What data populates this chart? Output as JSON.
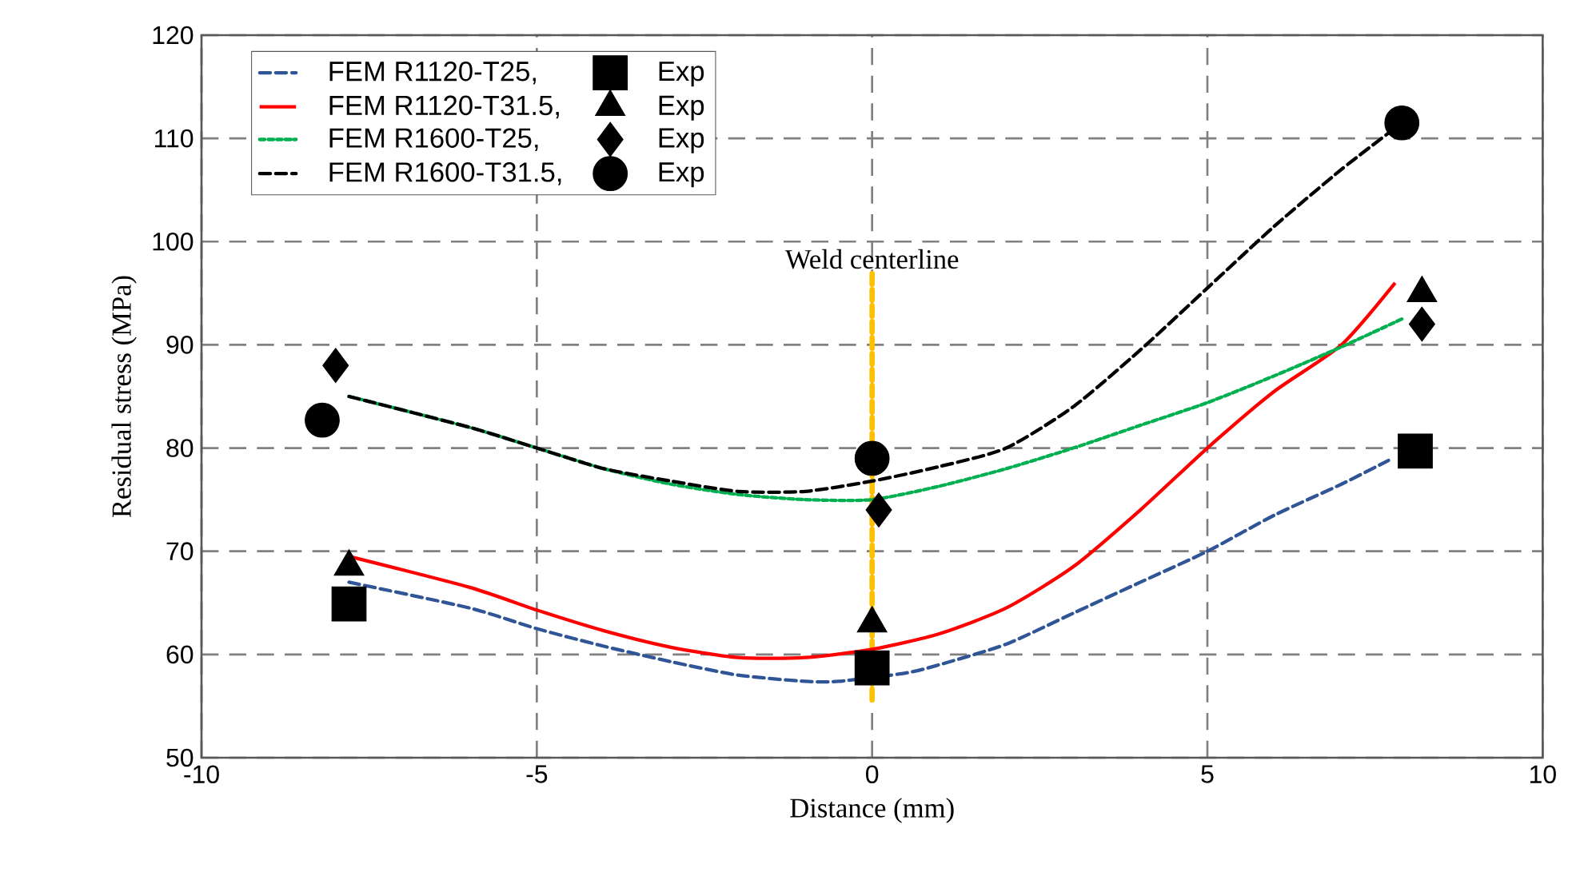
{
  "chart_data": {
    "type": "line",
    "xlabel": "Distance (mm)",
    "ylabel": "Residual stress (MPa)",
    "xlim": [
      -10,
      10
    ],
    "ylim": [
      50,
      120
    ],
    "xticks": [
      -10,
      -5,
      0,
      5,
      10
    ],
    "yticks": [
      50,
      60,
      70,
      80,
      90,
      100,
      110,
      120
    ],
    "grid": true,
    "legend": "top left",
    "ref_lines": [
      {
        "axis": "x",
        "value": 0,
        "label": "Weld centerline",
        "color": "#ffc000",
        "line_style": "dashed"
      }
    ],
    "series": [
      {
        "name": "FEM R1120-T25,",
        "type": "line",
        "color": "#2f5597",
        "line_style": "dashed",
        "marker": "none",
        "x": [
          -7.8,
          -6,
          -5,
          -4,
          -3,
          -2,
          -1,
          -0.5,
          0.5,
          1,
          2,
          3,
          4,
          5,
          6,
          7,
          7.7
        ],
        "values": [
          67,
          64.5,
          62.5,
          60.8,
          59.3,
          58,
          57.4,
          57.4,
          58.2,
          59,
          61,
          64,
          67,
          70,
          73.5,
          76.5,
          78.8
        ]
      },
      {
        "name": "Exp",
        "type": "scatter",
        "color": "#000000",
        "marker": "square",
        "x": [
          -7.8,
          0,
          8.1
        ],
        "values": [
          64.9,
          58.7,
          79.7
        ]
      },
      {
        "name": "FEM R1120-T31.5,",
        "type": "line",
        "color": "#ff0000",
        "line_style": "solid",
        "marker": "none",
        "x": [
          -7.8,
          -6,
          -5,
          -4,
          -3,
          -2,
          -1,
          0,
          1,
          2,
          3,
          4,
          5,
          6,
          7,
          7.8
        ],
        "values": [
          69.5,
          66.5,
          64.3,
          62.3,
          60.7,
          59.7,
          59.7,
          60.5,
          62,
          64.5,
          68.5,
          74,
          80,
          85.5,
          90,
          96
        ]
      },
      {
        "name": "Exp",
        "type": "scatter",
        "color": "#000000",
        "marker": "triangle",
        "x": [
          -7.8,
          0,
          8.2
        ],
        "values": [
          68.5,
          63,
          95
        ]
      },
      {
        "name": "FEM R1600-T25,",
        "type": "line",
        "color": "#00b050",
        "line_style": "dotted",
        "marker": "none",
        "x": [
          -7.8,
          -6,
          -5,
          -4,
          -3,
          -2,
          -1,
          0,
          1,
          2,
          3,
          4,
          5,
          6,
          7,
          7.9
        ],
        "values": [
          85,
          82,
          80,
          78,
          76.5,
          75.5,
          75,
          75,
          76.3,
          78,
          80,
          82.2,
          84.4,
          87,
          89.8,
          92.5
        ]
      },
      {
        "name": "Exp",
        "type": "scatter",
        "color": "#000000",
        "marker": "diamond",
        "x": [
          -8,
          0.1,
          8.2
        ],
        "values": [
          88,
          74,
          92
        ]
      },
      {
        "name": "FEM R1600-T31.5,",
        "type": "line",
        "color": "#000000",
        "line_style": "dashed",
        "marker": "none",
        "x": [
          -7.8,
          -6,
          -5,
          -4,
          -3,
          -2,
          -1,
          0,
          1,
          2,
          3,
          4,
          5,
          6,
          7,
          7.8
        ],
        "values": [
          85,
          82,
          80,
          78,
          76.8,
          75.8,
          75.8,
          76.8,
          78.2,
          80,
          84,
          89.5,
          95.5,
          101.5,
          107,
          111
        ]
      },
      {
        "name": "Exp",
        "type": "scatter",
        "color": "#000000",
        "marker": "circle",
        "x": [
          -8.2,
          0,
          7.9
        ],
        "values": [
          82.7,
          79,
          111.5
        ]
      }
    ]
  }
}
